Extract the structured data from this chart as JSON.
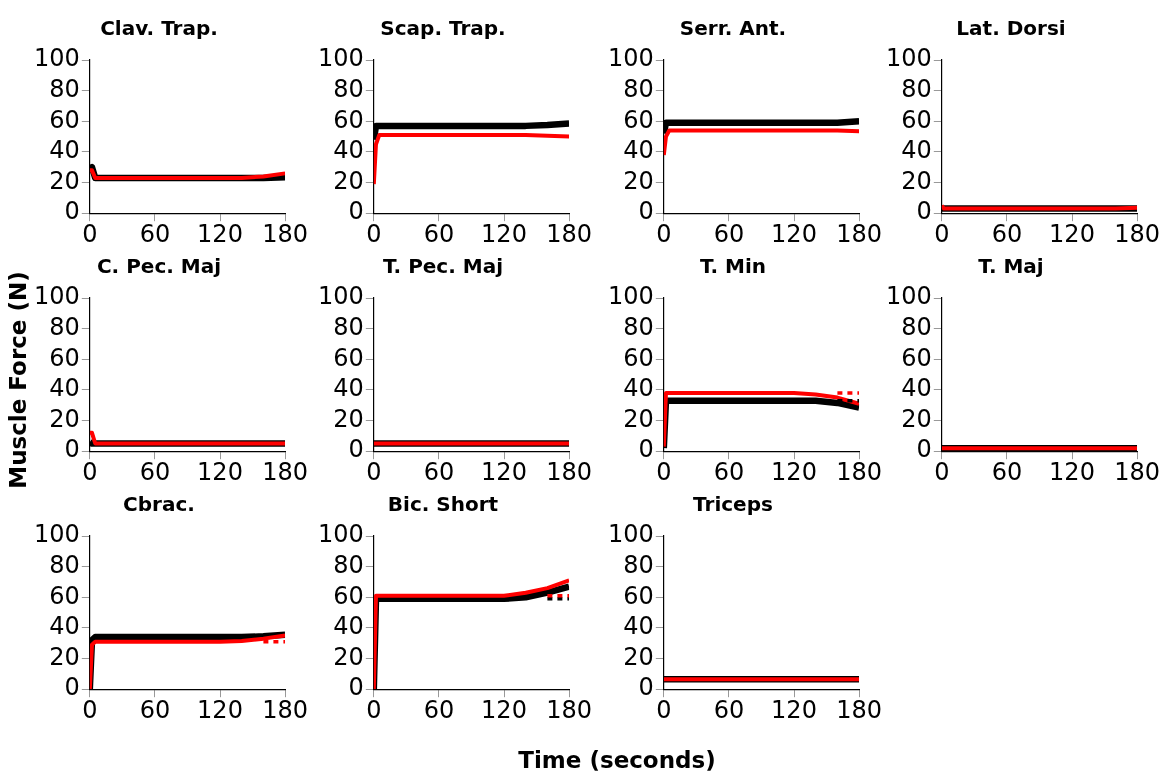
{
  "chart_data": [
    {
      "type": "line",
      "title": "Clav. Trap.",
      "x": [
        0,
        2,
        5,
        60,
        120,
        140,
        160,
        180
      ],
      "xlim": [
        0,
        180
      ],
      "xticks": [
        0,
        60,
        120,
        180
      ],
      "ylim": [
        0,
        100
      ],
      "yticks": [
        0,
        20,
        40,
        60,
        80,
        100
      ],
      "grid": false,
      "legend": false,
      "marker": "none",
      "series": [
        {
          "color": "#000000",
          "line_style": "solid",
          "values": [
            29,
            30,
            23,
            23,
            23,
            23,
            23,
            23.5
          ]
        },
        {
          "color": "#ff0000",
          "line_style": "solid",
          "values": [
            28,
            28,
            23,
            23,
            23,
            23,
            24,
            26
          ]
        }
      ]
    },
    {
      "type": "line",
      "title": "Scap. Trap.",
      "x": [
        0,
        2,
        5,
        60,
        120,
        140,
        160,
        180
      ],
      "xlim": [
        0,
        180
      ],
      "xticks": [
        0,
        60,
        120,
        180
      ],
      "ylim": [
        0,
        100
      ],
      "yticks": [
        0,
        20,
        40,
        60,
        80,
        100
      ],
      "grid": false,
      "legend": false,
      "marker": "none",
      "series": [
        {
          "color": "#000000",
          "line_style": "solid",
          "values": [
            48,
            57,
            57,
            57,
            57,
            57,
            57.5,
            58.5
          ]
        },
        {
          "color": "#ff0000",
          "line_style": "solid",
          "values": [
            19,
            45,
            51,
            51,
            51,
            51,
            50.5,
            50
          ]
        }
      ]
    },
    {
      "type": "line",
      "title": "Serr. Ant.",
      "x": [
        0,
        2,
        5,
        60,
        120,
        140,
        160,
        180
      ],
      "xlim": [
        0,
        180
      ],
      "xticks": [
        0,
        60,
        120,
        180
      ],
      "ylim": [
        0,
        100
      ],
      "yticks": [
        0,
        20,
        40,
        60,
        80,
        100
      ],
      "grid": false,
      "legend": false,
      "marker": "none",
      "series": [
        {
          "color": "#000000",
          "line_style": "solid",
          "values": [
            52,
            59,
            59,
            59,
            59,
            59,
            59,
            60
          ]
        },
        {
          "color": "#ff0000",
          "line_style": "solid",
          "values": [
            38,
            50,
            54,
            54,
            54,
            54,
            54,
            53.5
          ]
        }
      ]
    },
    {
      "type": "line",
      "title": "Lat. Dorsi",
      "x": [
        0,
        2,
        5,
        60,
        120,
        140,
        160,
        180
      ],
      "xlim": [
        0,
        180
      ],
      "xticks": [
        0,
        60,
        120,
        180
      ],
      "ylim": [
        0,
        100
      ],
      "yticks": [
        0,
        20,
        40,
        60,
        80,
        100
      ],
      "grid": false,
      "legend": false,
      "marker": "none",
      "series": [
        {
          "color": "#000000",
          "line_style": "solid",
          "values": [
            3,
            3,
            3,
            3,
            3,
            3,
            3,
            3
          ]
        },
        {
          "color": "#ff0000",
          "line_style": "solid",
          "values": [
            5,
            3,
            3,
            3,
            3,
            3,
            3,
            3.5
          ]
        }
      ]
    },
    {
      "type": "line",
      "title": "C. Pec. Maj",
      "ylabel": "Muscle Force (N)",
      "x": [
        0,
        2,
        5,
        60,
        120,
        140,
        160,
        180
      ],
      "xlim": [
        0,
        180
      ],
      "xticks": [
        0,
        60,
        120,
        180
      ],
      "ylim": [
        0,
        100
      ],
      "yticks": [
        0,
        20,
        40,
        60,
        80,
        100
      ],
      "grid": false,
      "legend": false,
      "marker": "none",
      "series": [
        {
          "color": "#000000",
          "line_style": "solid",
          "values": [
            6,
            5,
            5,
            5,
            5,
            5,
            5,
            5
          ]
        },
        {
          "color": "#ff0000",
          "line_style": "solid",
          "values": [
            12,
            12,
            5,
            5,
            5,
            5,
            5,
            5
          ]
        }
      ]
    },
    {
      "type": "line",
      "title": "T. Pec. Maj",
      "x": [
        0,
        2,
        5,
        60,
        120,
        140,
        160,
        180
      ],
      "xlim": [
        0,
        180
      ],
      "xticks": [
        0,
        60,
        120,
        180
      ],
      "ylim": [
        0,
        100
      ],
      "yticks": [
        0,
        20,
        40,
        60,
        80,
        100
      ],
      "grid": false,
      "legend": false,
      "marker": "none",
      "series": [
        {
          "color": "#000000",
          "line_style": "solid",
          "values": [
            5,
            5,
            5,
            5,
            5,
            5,
            5,
            5
          ]
        },
        {
          "color": "#ff0000",
          "line_style": "solid",
          "values": [
            5,
            5,
            5,
            5,
            5,
            5,
            5,
            5
          ]
        }
      ]
    },
    {
      "type": "line",
      "title": "T. Min",
      "x": [
        0,
        2,
        5,
        60,
        120,
        140,
        160,
        180
      ],
      "xlim": [
        0,
        180
      ],
      "xticks": [
        0,
        60,
        120,
        180
      ],
      "ylim": [
        0,
        100
      ],
      "yticks": [
        0,
        20,
        40,
        60,
        80,
        100
      ],
      "grid": false,
      "legend": false,
      "marker": "none",
      "series": [
        {
          "color": "#000000",
          "line_style": "solid",
          "values": [
            2,
            33,
            33,
            33,
            33,
            33,
            31.5,
            28.5
          ]
        },
        {
          "color": "#ff0000",
          "line_style": "solid",
          "values": [
            3,
            38,
            38,
            38,
            38,
            37,
            35,
            31
          ]
        },
        {
          "color": "#000000",
          "line_style": "dotted",
          "values": [
            null,
            null,
            null,
            null,
            null,
            null,
            33,
            33
          ]
        },
        {
          "color": "#ff0000",
          "line_style": "dotted",
          "values": [
            null,
            null,
            null,
            null,
            null,
            null,
            38,
            38
          ]
        }
      ]
    },
    {
      "type": "line",
      "title": "T. Maj",
      "x": [
        0,
        2,
        5,
        60,
        120,
        140,
        160,
        180
      ],
      "xlim": [
        0,
        180
      ],
      "xticks": [
        0,
        60,
        120,
        180
      ],
      "ylim": [
        0,
        100
      ],
      "yticks": [
        0,
        20,
        40,
        60,
        80,
        100
      ],
      "grid": false,
      "legend": false,
      "marker": "none",
      "series": [
        {
          "color": "#000000",
          "line_style": "solid",
          "values": [
            2,
            2,
            2,
            2,
            2,
            2,
            2,
            2
          ]
        },
        {
          "color": "#ff0000",
          "line_style": "solid",
          "values": [
            2,
            2,
            2,
            2,
            2,
            2,
            2,
            2
          ]
        }
      ]
    },
    {
      "type": "line",
      "title": "Cbrac.",
      "x": [
        0,
        2,
        5,
        60,
        120,
        140,
        160,
        180
      ],
      "xlim": [
        0,
        180
      ],
      "xticks": [
        0,
        60,
        120,
        180
      ],
      "ylim": [
        0,
        100
      ],
      "yticks": [
        0,
        20,
        40,
        60,
        80,
        100
      ],
      "grid": false,
      "legend": false,
      "marker": "none",
      "series": [
        {
          "color": "#000000",
          "line_style": "solid",
          "values": [
            0,
            32,
            34,
            34,
            34,
            34,
            34.5,
            35.5
          ]
        },
        {
          "color": "#ff0000",
          "line_style": "solid",
          "values": [
            0,
            29,
            31,
            31,
            31,
            31.5,
            33,
            35
          ]
        },
        {
          "color": "#ff0000",
          "line_style": "dotted",
          "values": [
            null,
            null,
            null,
            null,
            null,
            null,
            31,
            31
          ]
        }
      ]
    },
    {
      "type": "line",
      "title": "Bic. Short",
      "xlabel": "Time (seconds)",
      "x": [
        0,
        2,
        5,
        60,
        120,
        140,
        160,
        180
      ],
      "xlim": [
        0,
        180
      ],
      "xticks": [
        0,
        60,
        120,
        180
      ],
      "ylim": [
        0,
        100
      ],
      "yticks": [
        0,
        20,
        40,
        60,
        80,
        100
      ],
      "grid": false,
      "legend": false,
      "marker": "none",
      "series": [
        {
          "color": "#000000",
          "line_style": "solid",
          "values": [
            0,
            59,
            59,
            59,
            59,
            60,
            63,
            67
          ]
        },
        {
          "color": "#ff0000",
          "line_style": "solid",
          "values": [
            0,
            61,
            61,
            61,
            61,
            63,
            66,
            71
          ]
        },
        {
          "color": "#000000",
          "line_style": "dotted",
          "values": [
            null,
            null,
            null,
            null,
            null,
            null,
            59,
            59
          ]
        },
        {
          "color": "#ff0000",
          "line_style": "dotted",
          "values": [
            null,
            null,
            null,
            null,
            null,
            null,
            61,
            61
          ]
        }
      ]
    },
    {
      "type": "line",
      "title": "Triceps",
      "x": [
        0,
        2,
        5,
        60,
        120,
        140,
        160,
        180
      ],
      "xlim": [
        0,
        180
      ],
      "xticks": [
        0,
        60,
        120,
        180
      ],
      "ylim": [
        0,
        100
      ],
      "yticks": [
        0,
        20,
        40,
        60,
        80,
        100
      ],
      "grid": false,
      "legend": false,
      "marker": "none",
      "series": [
        {
          "color": "#000000",
          "line_style": "solid",
          "values": [
            6.5,
            6.5,
            6.5,
            6.5,
            6.5,
            6.5,
            6.5,
            6.5
          ]
        },
        {
          "color": "#ff0000",
          "line_style": "solid",
          "values": [
            6.5,
            6.5,
            6.5,
            6.5,
            6.5,
            6.5,
            6.5,
            6.5
          ]
        }
      ]
    }
  ]
}
